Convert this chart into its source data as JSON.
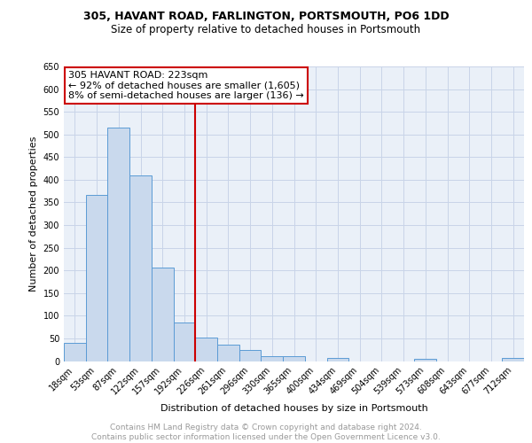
{
  "title1": "305, HAVANT ROAD, FARLINGTON, PORTSMOUTH, PO6 1DD",
  "title2": "Size of property relative to detached houses in Portsmouth",
  "xlabel": "Distribution of detached houses by size in Portsmouth",
  "ylabel": "Number of detached properties",
  "bar_labels": [
    "18sqm",
    "53sqm",
    "87sqm",
    "122sqm",
    "157sqm",
    "192sqm",
    "226sqm",
    "261sqm",
    "296sqm",
    "330sqm",
    "365sqm",
    "400sqm",
    "434sqm",
    "469sqm",
    "504sqm",
    "539sqm",
    "573sqm",
    "608sqm",
    "643sqm",
    "677sqm",
    "712sqm"
  ],
  "bar_values": [
    40,
    367,
    516,
    410,
    206,
    85,
    52,
    37,
    24,
    11,
    10,
    0,
    7,
    0,
    0,
    0,
    5,
    0,
    0,
    0,
    7
  ],
  "bar_color": "#c9d9ed",
  "bar_edge_color": "#5b9bd5",
  "vline_x_index": 6,
  "vline_color": "#cc0000",
  "annotation_line1": "305 HAVANT ROAD: 223sqm",
  "annotation_line2": "← 92% of detached houses are smaller (1,605)",
  "annotation_line3": "8% of semi-detached houses are larger (136) →",
  "annotation_box_color": "#cc0000",
  "ylim": [
    0,
    650
  ],
  "yticks": [
    0,
    50,
    100,
    150,
    200,
    250,
    300,
    350,
    400,
    450,
    500,
    550,
    600,
    650
  ],
  "grid_color": "#c8d4e8",
  "background_color": "#eaf0f8",
  "footer_text": "Contains HM Land Registry data © Crown copyright and database right 2024.\nContains public sector information licensed under the Open Government Licence v3.0.",
  "title1_fontsize": 9,
  "title2_fontsize": 8.5,
  "xlabel_fontsize": 8,
  "ylabel_fontsize": 8,
  "tick_fontsize": 7,
  "annotation_fontsize": 8,
  "footer_fontsize": 6.5
}
